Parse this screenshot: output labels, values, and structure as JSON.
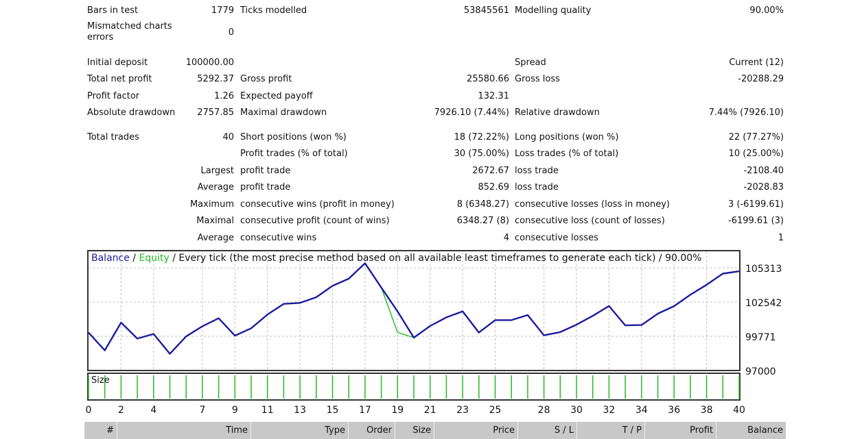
{
  "summary": {
    "bars_in_test": {
      "label": "Bars in test",
      "value": "1779"
    },
    "ticks_modelled": {
      "label": "Ticks modelled",
      "value": "53845561"
    },
    "modelling_quality": {
      "label": "Modelling quality",
      "value": "90.00%"
    },
    "mismatched": {
      "label": "Mismatched charts errors",
      "value": "0"
    },
    "initial_deposit": {
      "label": "Initial deposit",
      "value": "100000.00"
    },
    "spread": {
      "label": "Spread",
      "value": "Current (12)"
    },
    "total_net_profit": {
      "label": "Total net profit",
      "value": "5292.37"
    },
    "gross_profit": {
      "label": "Gross profit",
      "value": "25580.66"
    },
    "gross_loss": {
      "label": "Gross loss",
      "value": "-20288.29"
    },
    "profit_factor": {
      "label": "Profit factor",
      "value": "1.26"
    },
    "expected_payoff": {
      "label": "Expected payoff",
      "value": "132.31"
    },
    "absolute_drawdown": {
      "label": "Absolute drawdown",
      "value": "2757.85"
    },
    "maximal_drawdown": {
      "label": "Maximal drawdown",
      "value": "7926.10 (7.44%)"
    },
    "relative_drawdown": {
      "label": "Relative drawdown",
      "value": "7.44% (7926.10)"
    },
    "total_trades": {
      "label": "Total trades",
      "value": "40"
    },
    "short_positions": {
      "label": "Short positions (won %)",
      "value": "18 (72.22%)"
    },
    "long_positions": {
      "label": "Long positions (won %)",
      "value": "22 (77.27%)"
    },
    "profit_trades": {
      "label": "Profit trades (% of total)",
      "value": "30 (75.00%)"
    },
    "loss_trades": {
      "label": "Loss trades (% of total)",
      "value": "10 (25.00%)"
    },
    "largest": {
      "row_label": "Largest",
      "profit_label": "profit trade",
      "profit_value": "2672.67",
      "loss_label": "loss trade",
      "loss_value": "-2108.40"
    },
    "average": {
      "row_label": "Average",
      "profit_label": "profit trade",
      "profit_value": "852.69",
      "loss_label": "loss trade",
      "loss_value": "-2028.83"
    },
    "maximum": {
      "row_label": "Maximum",
      "profit_label": "consecutive wins (profit in money)",
      "profit_value": "8 (6348.27)",
      "loss_label": "consecutive losses (loss in money)",
      "loss_value": "3 (-6199.61)"
    },
    "maximal": {
      "row_label": "Maximal",
      "profit_label": "consecutive profit (count of wins)",
      "profit_value": "6348.27 (8)",
      "loss_label": "consecutive loss (count of losses)",
      "loss_value": "-6199.61 (3)"
    },
    "average_consec": {
      "row_label": "Average",
      "profit_label": "consecutive wins",
      "profit_value": "4",
      "loss_label": "consecutive losses",
      "loss_value": "1"
    }
  },
  "chart_legend": {
    "balance": "Balance",
    "sep1": " / ",
    "equity": "Equity",
    "rest": " / Every tick (the most precise method based on all available least timeframes to generate each tick) / 90.00%"
  },
  "size_label": "Size",
  "colors": {
    "balance": "#1c1c9c",
    "equity": "#22bb22",
    "grid": "#bdbdbd",
    "size_bar": "#22bb22"
  },
  "chart_data": {
    "type": "line",
    "y_ticks": [
      "105313",
      "102542",
      "99771",
      "97000"
    ],
    "ylim": [
      97000,
      105313
    ],
    "x_ticks": [
      "0",
      "2",
      "4",
      "7",
      "9",
      "11",
      "13",
      "15",
      "17",
      "19",
      "21",
      "23",
      "25",
      "28",
      "30",
      "32",
      "34",
      "36",
      "38",
      "40"
    ],
    "series": [
      {
        "name": "Balance",
        "x": [
          0,
          1,
          2,
          3,
          4,
          5,
          6,
          7,
          8,
          9,
          10,
          11,
          12,
          13,
          14,
          15,
          16,
          17,
          18,
          19,
          20,
          21,
          22,
          23,
          24,
          25,
          26,
          27,
          28,
          29,
          30,
          31,
          32,
          33,
          34,
          35,
          36,
          37,
          38,
          39,
          40
        ],
        "values": [
          100070,
          98630,
          100880,
          99580,
          99960,
          98350,
          99760,
          100580,
          101230,
          99820,
          100420,
          101530,
          102390,
          102470,
          102930,
          103850,
          104430,
          105680,
          103710,
          101780,
          99660,
          100600,
          101300,
          101790,
          100070,
          101080,
          101080,
          101490,
          99850,
          100110,
          100710,
          101420,
          102220,
          100650,
          100680,
          101600,
          102210,
          103130,
          103940,
          104840,
          105030
        ]
      },
      {
        "name": "Equity",
        "x": [
          17,
          18,
          19,
          20
        ],
        "values": [
          105680,
          103710,
          100080,
          99660
        ]
      }
    ],
    "size_bars": [
      1,
      1,
      1,
      1,
      1,
      1,
      1,
      1,
      1,
      1,
      1,
      1,
      1,
      1,
      1,
      1,
      1,
      1,
      1,
      1,
      1,
      1,
      1,
      1,
      1,
      1,
      1,
      1,
      1,
      1,
      1,
      1,
      1,
      1,
      1,
      1,
      1,
      1,
      1,
      1,
      1
    ]
  },
  "table": {
    "columns": [
      "#",
      "Time",
      "Type",
      "Order",
      "Size",
      "Price",
      "S / L",
      "T / P",
      "Profit",
      "Balance"
    ]
  }
}
